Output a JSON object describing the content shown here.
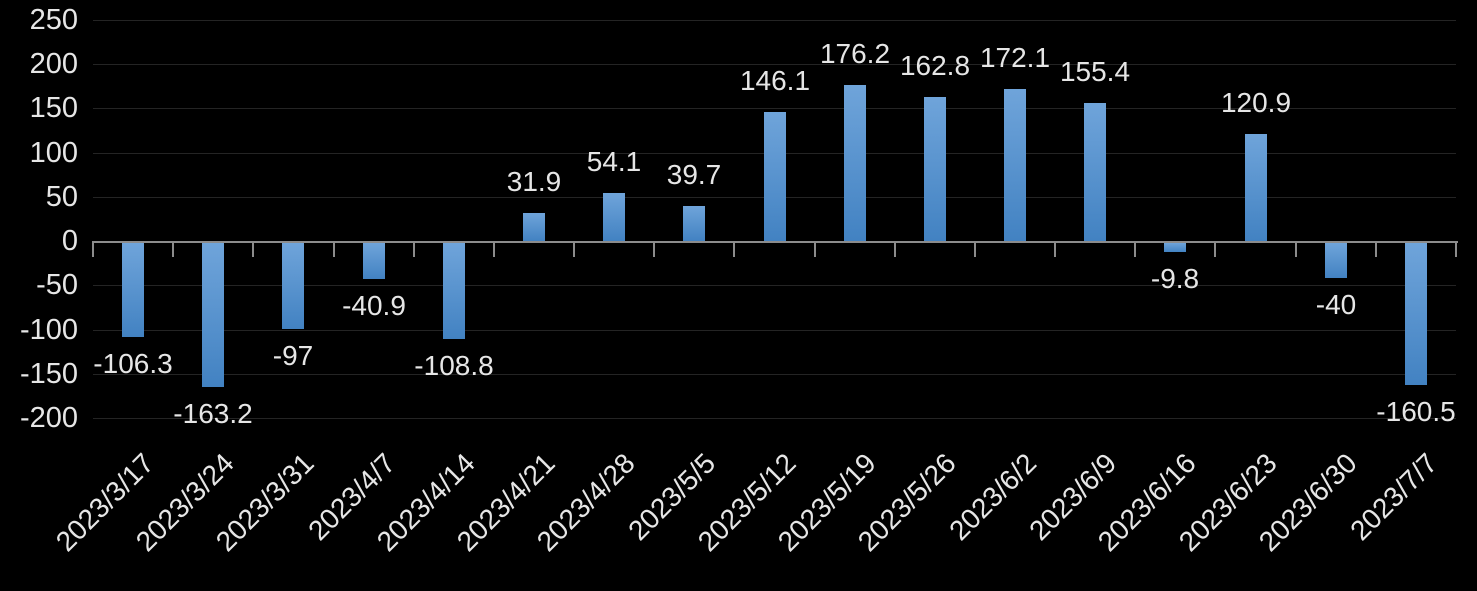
{
  "chart_data": {
    "type": "bar",
    "title": "",
    "xlabel": "",
    "ylabel": "",
    "categories": [
      "2023/3/17",
      "2023/3/24",
      "2023/3/31",
      "2023/4/7",
      "2023/4/14",
      "2023/4/21",
      "2023/4/28",
      "2023/5/5",
      "2023/5/12",
      "2023/5/19",
      "2023/5/26",
      "2023/6/2",
      "2023/6/9",
      "2023/6/16",
      "2023/6/23",
      "2023/6/30",
      "2023/7/7"
    ],
    "values": [
      -106.3,
      -163.2,
      -97,
      -40.9,
      -108.8,
      31.9,
      54.1,
      39.7,
      146.1,
      176.2,
      162.8,
      172.1,
      155.4,
      -9.8,
      120.9,
      -40,
      -160.5
    ],
    "data_labels": [
      "-106.3",
      "-163.2",
      "-97",
      "-40.9",
      "-108.8",
      "31.9",
      "54.1",
      "39.7",
      "146.1",
      "176.2",
      "162.8",
      "172.1",
      "155.4",
      "-9.8",
      "120.9",
      "-40",
      "-160.5"
    ],
    "y_ticks": [
      250,
      200,
      150,
      100,
      50,
      0,
      -50,
      -100,
      -150,
      -200
    ],
    "y_tick_labels": [
      "250",
      "200",
      "150",
      "100",
      "50",
      "0",
      "-50",
      "-100",
      "-150",
      "-200"
    ],
    "ylim": [
      -200,
      250
    ],
    "grid": true,
    "legend": "none",
    "x_label_rotation_deg": 45,
    "colors": {
      "background": "#000000",
      "bar_gradient_top": "#6FA4DA",
      "bar_gradient_bottom": "#4282C2",
      "gridline": "#242424",
      "axis_line": "#8C8C8C",
      "label_text": "#E6E6E6"
    }
  }
}
